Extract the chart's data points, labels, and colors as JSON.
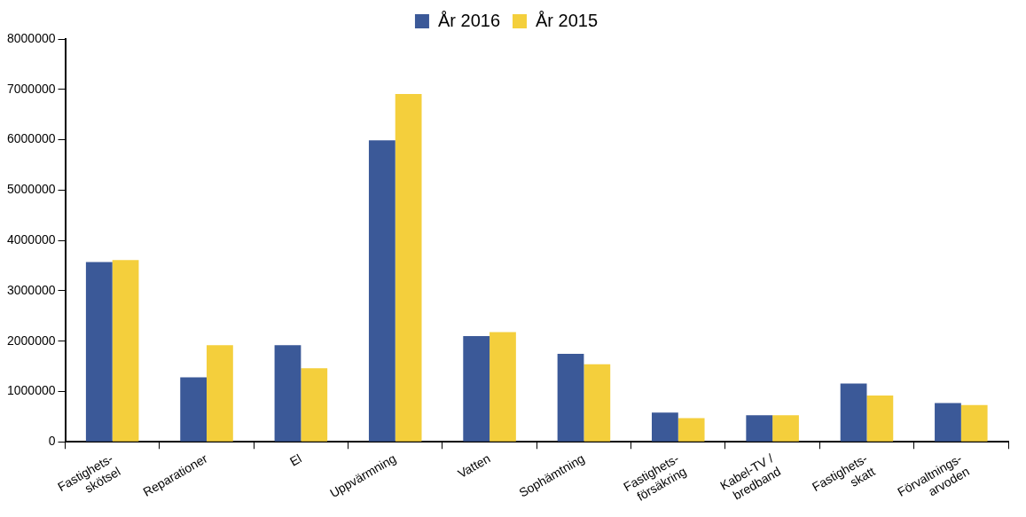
{
  "chart_data": {
    "type": "bar",
    "categories": [
      "Fastighets-\nskötsel",
      "Reparationer",
      "El",
      "Uppvärmning",
      "Vatten",
      "Sophämtning",
      "Fastighets-\nförsäkring",
      "Kabel-TV /\nbredband",
      "Fastighets-\nskatt",
      "Förvaltnings-\narvoden"
    ],
    "series": [
      {
        "name": "År 2016",
        "color": "#3b5998",
        "values": [
          3570000,
          1280000,
          1920000,
          5990000,
          2100000,
          1750000,
          580000,
          530000,
          1160000,
          770000
        ]
      },
      {
        "name": "År 2015",
        "color": "#f4cf3c",
        "values": [
          3610000,
          1920000,
          1460000,
          6910000,
          2180000,
          1540000,
          470000,
          530000,
          920000,
          730000
        ]
      }
    ],
    "ylim": [
      0,
      8000000
    ],
    "yticks": [
      0,
      1000000,
      2000000,
      3000000,
      4000000,
      5000000,
      6000000,
      7000000,
      8000000
    ],
    "grid": false,
    "legend": "top"
  }
}
